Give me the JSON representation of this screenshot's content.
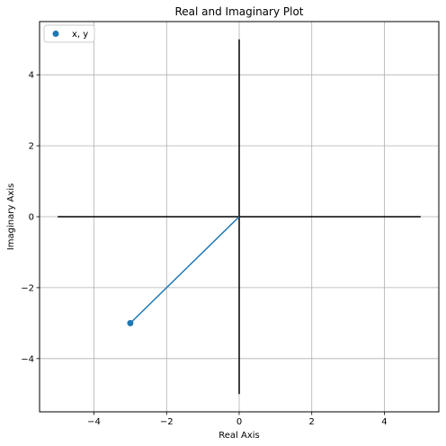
{
  "chart_data": {
    "type": "scatter",
    "title": "Real and Imaginary Plot",
    "xlabel": "Real Axis",
    "ylabel": "Imaginary Axis",
    "xlim": [
      -5.5,
      5.5
    ],
    "ylim": [
      -5.5,
      5.5
    ],
    "xticks": [
      -4,
      -2,
      0,
      2,
      4
    ],
    "yticks": [
      -4,
      -2,
      0,
      2,
      4
    ],
    "xtick_labels": [
      "−4",
      "−2",
      "0",
      "2",
      "4"
    ],
    "ytick_labels": [
      "−4",
      "−2",
      "0",
      "2",
      "4"
    ],
    "grid": true,
    "legend_position": "top-left",
    "reference_lines": {
      "horizontal": {
        "x": [
          -5,
          5
        ],
        "y": 0,
        "color": "#000000"
      },
      "vertical": {
        "x": 0,
        "y": [
          -5,
          5
        ],
        "color": "#000000"
      }
    },
    "vector": {
      "from": [
        0,
        0
      ],
      "to": [
        -3,
        -3
      ],
      "color": "#1f77b4"
    },
    "series": [
      {
        "name": "x, y",
        "x": [
          -3
        ],
        "y": [
          -3
        ],
        "color": "#1f77b4"
      }
    ]
  }
}
